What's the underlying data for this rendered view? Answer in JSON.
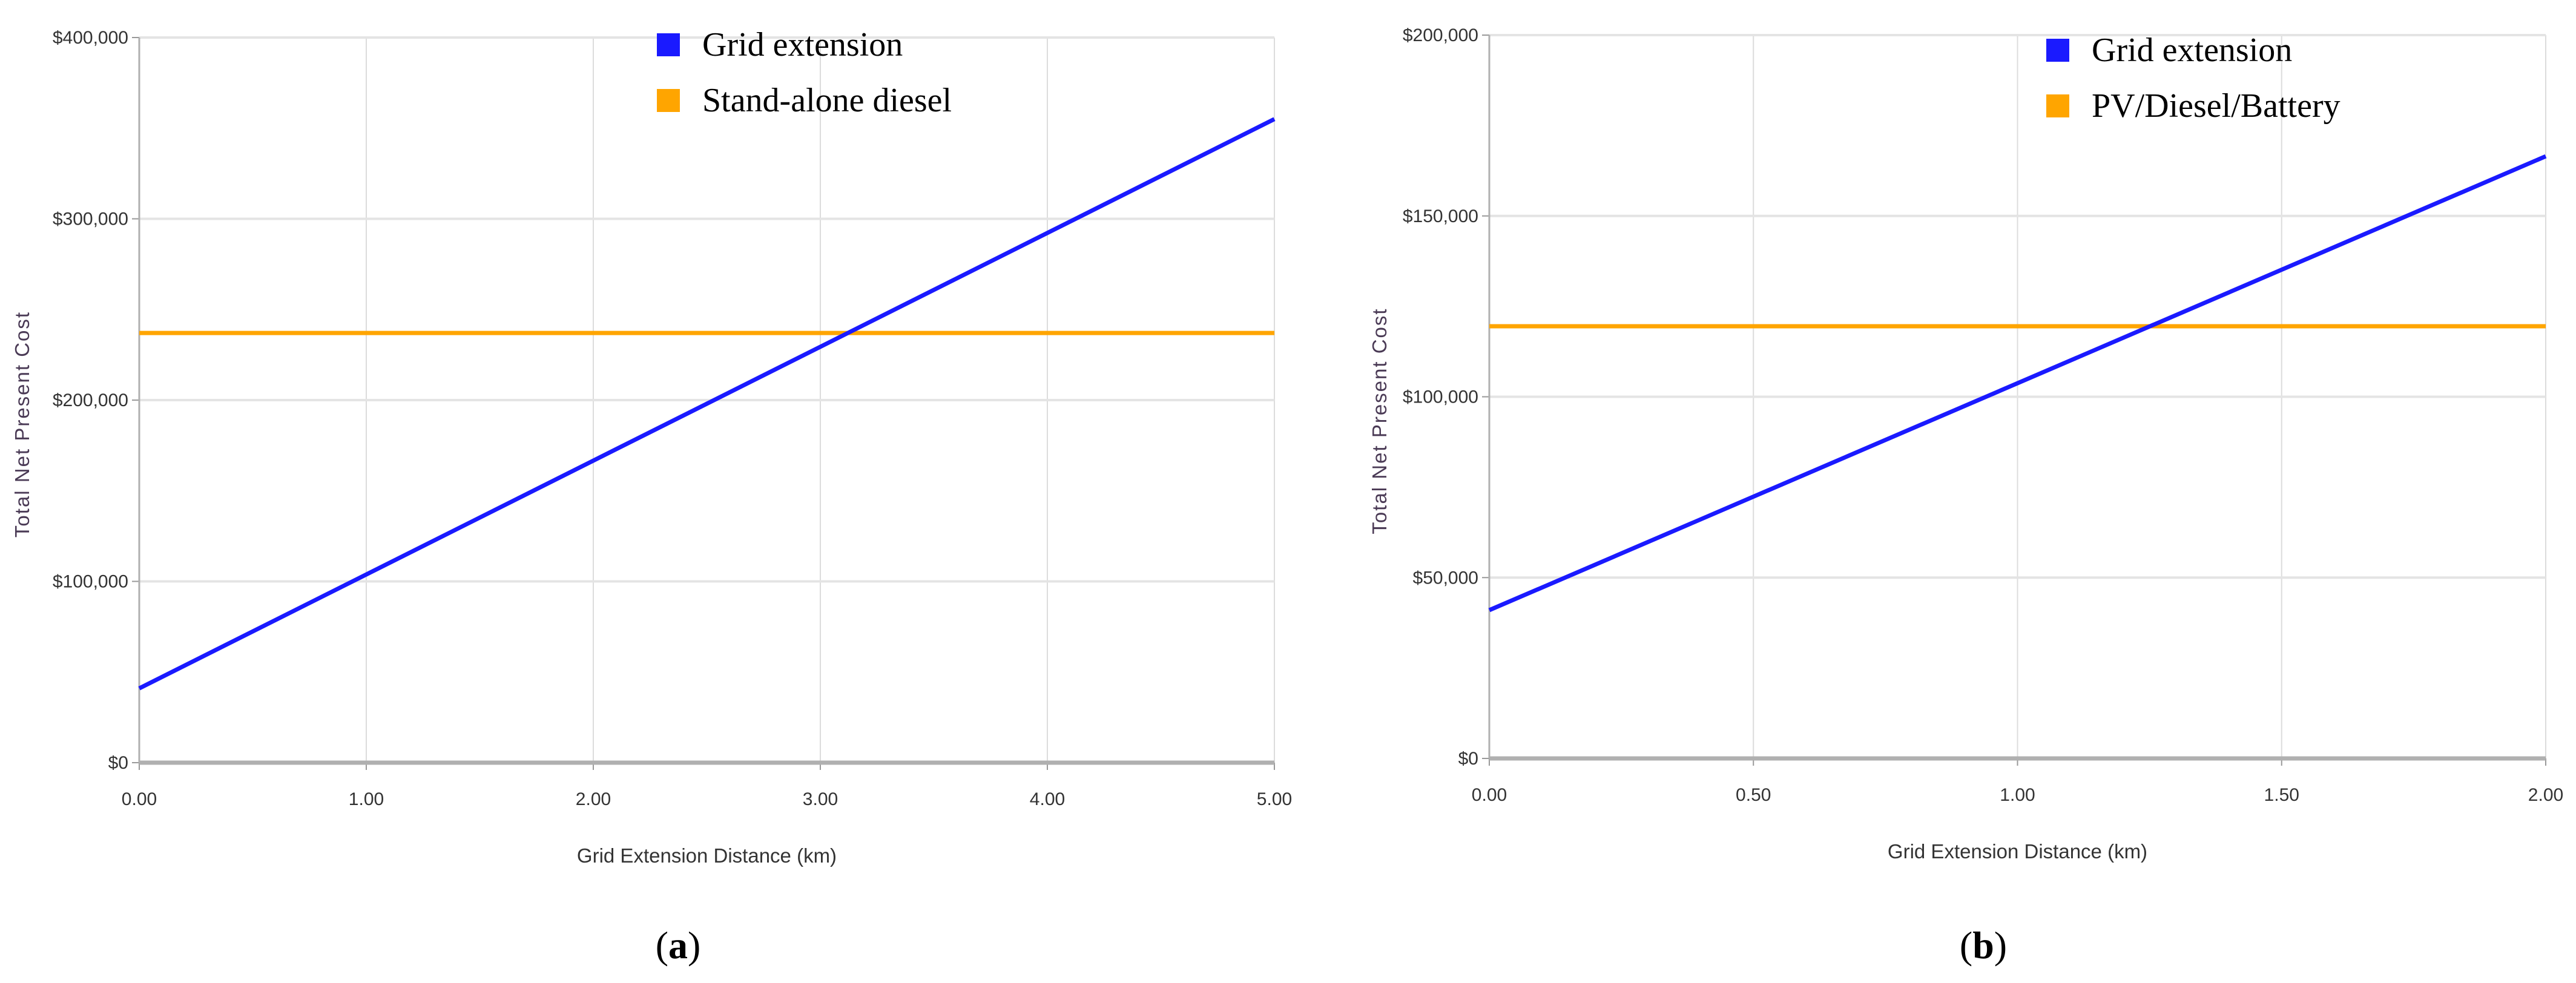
{
  "chart_data": [
    {
      "type": "line",
      "caption": "a",
      "xlabel": "Grid Extension Distance (km)",
      "ylabel": "Total Net Present Cost",
      "xlim": [
        0,
        5
      ],
      "ylim": [
        0,
        400000
      ],
      "x_ticks": [
        "0.00",
        "1.00",
        "2.00",
        "3.00",
        "4.00",
        "5.00"
      ],
      "y_ticks": [
        "$0",
        "$100,000",
        "$200,000",
        "$300,000",
        "$400,000"
      ],
      "grid": true,
      "legend_position": "top-center",
      "series": [
        {
          "name": "Grid extension",
          "color": "#1a1aff",
          "x": [
            0,
            5
          ],
          "y": [
            41000,
            355000
          ]
        },
        {
          "name": "Stand-alone diesel",
          "color": "#ffa500",
          "x": [
            0,
            5
          ],
          "y": [
            237000,
            237000
          ]
        }
      ]
    },
    {
      "type": "line",
      "caption": "b",
      "xlabel": "Grid Extension Distance (km)",
      "ylabel": "Total Net Present Cost",
      "xlim": [
        0,
        2
      ],
      "ylim": [
        0,
        200000
      ],
      "x_ticks": [
        "0.00",
        "0.50",
        "1.00",
        "1.50",
        "2.00"
      ],
      "y_ticks": [
        "$0",
        "$50,000",
        "$100,000",
        "$150,000",
        "$200,000"
      ],
      "grid": true,
      "legend_position": "top-right",
      "series": [
        {
          "name": "Grid extension",
          "color": "#1a1aff",
          "x": [
            0,
            2
          ],
          "y": [
            41000,
            166500
          ]
        },
        {
          "name": "PV/Diesel/Battery",
          "color": "#ffa500",
          "x": [
            0,
            2
          ],
          "y": [
            119500,
            119500
          ]
        }
      ]
    }
  ]
}
